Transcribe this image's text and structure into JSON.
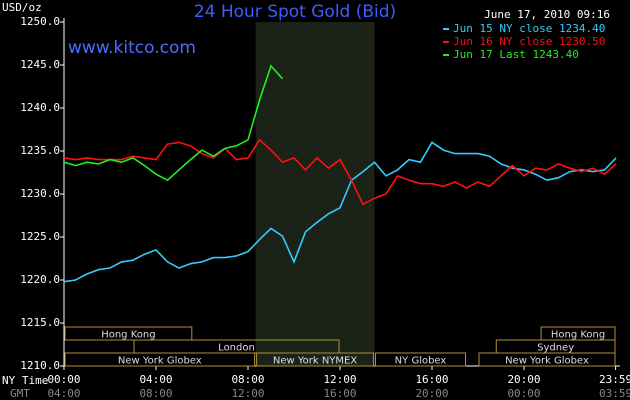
{
  "chart_data": {
    "type": "line",
    "title": "24 Hour Spot Gold (Bid)",
    "y_label": "USD/oz",
    "timestamp": "June 17, 2010 09:16",
    "watermark": "www.kitco.com",
    "x_label": "NY Time",
    "x2_label": "GMT",
    "x": [
      0,
      0.5,
      1,
      1.5,
      2,
      2.5,
      3,
      3.5,
      4,
      4.5,
      5,
      5.5,
      6,
      6.5,
      7,
      7.5,
      8,
      8.5,
      9,
      9.5,
      10,
      10.5,
      11,
      11.5,
      12,
      12.5,
      13,
      13.5,
      14,
      14.5,
      15,
      15.5,
      16,
      16.5,
      17,
      17.5,
      18,
      18.5,
      19,
      19.5,
      20,
      20.5,
      21,
      21.5,
      22,
      22.5,
      23,
      23.5,
      24
    ],
    "xlim": [
      0,
      24
    ],
    "xticks": [
      {
        "value": 0,
        "label": "00:00"
      },
      {
        "value": 4,
        "label": "04:00"
      },
      {
        "value": 8,
        "label": "08:00"
      },
      {
        "value": 12,
        "label": "12:00"
      },
      {
        "value": 16,
        "label": "16:00"
      },
      {
        "value": 20,
        "label": "20:00"
      },
      {
        "value": 23.983,
        "label": "23:59"
      }
    ],
    "gmt_labels": [
      "04:00",
      "08:00",
      "12:00",
      "16:00",
      "20:00",
      "00:00",
      "03:59"
    ],
    "ylim": [
      1210,
      1250
    ],
    "yticks": [
      {
        "value": 1210,
        "label": "1210.0"
      },
      {
        "value": 1215,
        "label": "1215.0"
      },
      {
        "value": 1220,
        "label": "1220.0"
      },
      {
        "value": 1225,
        "label": "1225.0"
      },
      {
        "value": 1230,
        "label": "1230.0"
      },
      {
        "value": 1235,
        "label": "1235.0"
      },
      {
        "value": 1240,
        "label": "1240.0"
      },
      {
        "value": 1245,
        "label": "1245.0"
      },
      {
        "value": 1250,
        "label": "1250.0"
      }
    ],
    "highlight": [
      8.33,
      13.5
    ],
    "series": [
      {
        "name": "Jun 15 NY close 1234.40",
        "color": "#33ccff",
        "values": [
          1219.8,
          1220.0,
          1220.7,
          1221.2,
          1221.4,
          1222.1,
          1222.3,
          1223.0,
          1223.5,
          1222.1,
          1221.4,
          1221.9,
          1222.1,
          1222.6,
          1222.6,
          1222.8,
          1223.3,
          1224.7,
          1226.0,
          1225.1,
          1222.1,
          1225.6,
          1226.7,
          1227.7,
          1228.4,
          1231.6,
          1232.6,
          1233.7,
          1232.1,
          1232.8,
          1234.0,
          1233.7,
          1236.0,
          1235.1,
          1234.7,
          1234.7,
          1234.7,
          1234.4,
          1233.5,
          1233.0,
          1232.8,
          1232.3,
          1231.6,
          1231.9,
          1232.6,
          1232.8,
          1232.6,
          1232.8,
          1234.2
        ]
      },
      {
        "name": "Jun 16 NY close 1230.50",
        "color": "#ff1111",
        "values": [
          1234.2,
          1234.0,
          1234.2,
          1234.0,
          1234.0,
          1234.0,
          1234.4,
          1234.2,
          1234.0,
          1235.8,
          1236.0,
          1235.6,
          1234.7,
          1234.2,
          1235.3,
          1234.0,
          1234.2,
          1236.3,
          1235.1,
          1233.7,
          1234.2,
          1232.8,
          1234.2,
          1233.0,
          1234.0,
          1231.6,
          1228.8,
          1229.5,
          1230.0,
          1232.1,
          1231.6,
          1231.2,
          1231.2,
          1230.9,
          1231.4,
          1230.7,
          1231.4,
          1230.9,
          1232.1,
          1233.3,
          1232.1,
          1233.0,
          1232.8,
          1233.5,
          1233.0,
          1232.6,
          1233.0,
          1232.3,
          1233.5
        ]
      },
      {
        "name": "Jun 17 Last 1243.40",
        "color": "#22ee22",
        "values": [
          1233.7,
          1233.3,
          1233.7,
          1233.5,
          1234.0,
          1233.7,
          1234.2,
          1233.3,
          1232.3,
          1231.6,
          1232.8,
          1234.0,
          1235.1,
          1234.4,
          1235.3,
          1235.6,
          1236.3,
          1240.9,
          1244.9,
          1243.4,
          null,
          null,
          null,
          null,
          null,
          null,
          null,
          null,
          null,
          null,
          null,
          null,
          null,
          null,
          null,
          null,
          null,
          null,
          null,
          null,
          null,
          null,
          null,
          null,
          null,
          null,
          null,
          null,
          null
        ]
      }
    ],
    "sessions": [
      [
        {
          "label": "Hong Kong",
          "start": 0,
          "end": 5.6
        },
        {
          "label": "Hong Kong",
          "start": 20.7,
          "end": 24
        }
      ],
      [
        {
          "label": "London",
          "start": 3,
          "end": 12
        },
        {
          "label": "Sydney",
          "start": 18.75,
          "end": 24
        }
      ],
      [
        {
          "label": "New York Globex",
          "start": 0,
          "end": 8.33
        },
        {
          "label": "New York NYMEX",
          "start": 8.33,
          "end": 13.5
        },
        {
          "label": "NY Globex",
          "start": 13.5,
          "end": 17.5
        },
        {
          "label": "New York Globex",
          "start": 18,
          "end": 24
        }
      ]
    ]
  }
}
